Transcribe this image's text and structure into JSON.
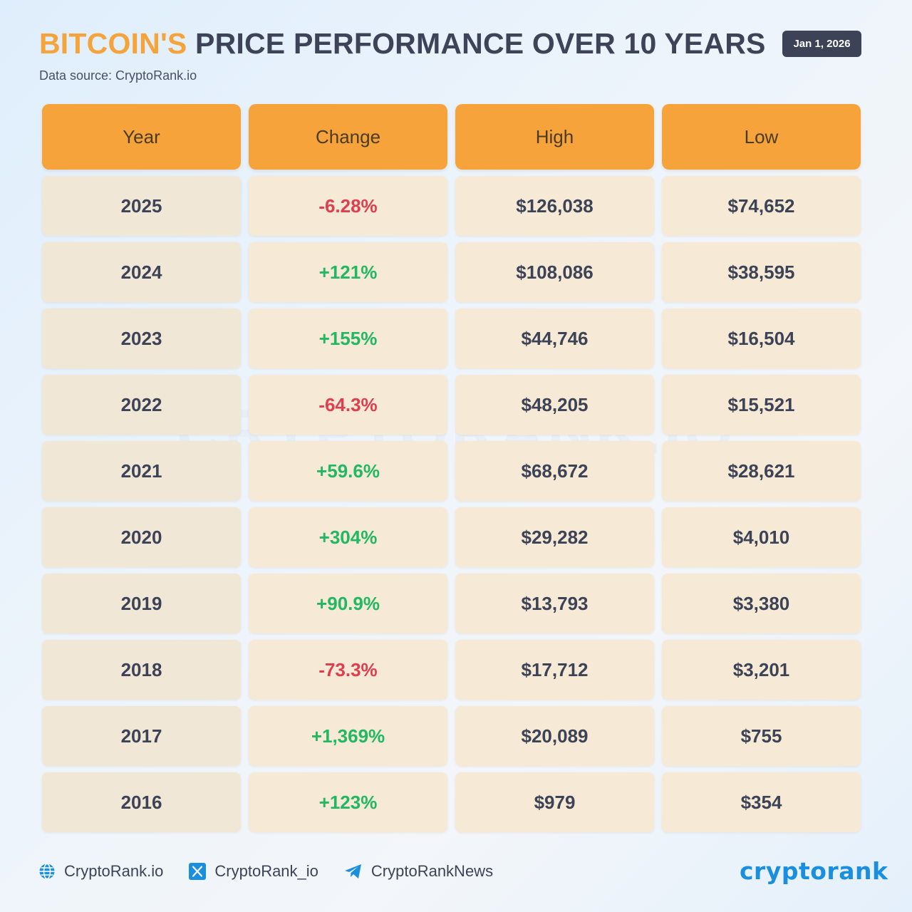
{
  "header": {
    "title_accent": "BITCOIN'S",
    "title_rest": "PRICE PERFORMANCE OVER 10 YEARS",
    "subtitle": "Data source: CryptoRank.io",
    "date": "Jan 1, 2026"
  },
  "watermark": "CRYPTORANK.IO",
  "table": {
    "columns": [
      "Year",
      "Change",
      "High",
      "Low"
    ],
    "rows": [
      {
        "year": "2025",
        "change": "-6.28%",
        "trend": "neg",
        "high": "$126,038",
        "low": "$74,652"
      },
      {
        "year": "2024",
        "change": "+121%",
        "trend": "pos",
        "high": "$108,086",
        "low": "$38,595"
      },
      {
        "year": "2023",
        "change": "+155%",
        "trend": "pos",
        "high": "$44,746",
        "low": "$16,504"
      },
      {
        "year": "2022",
        "change": "-64.3%",
        "trend": "neg",
        "high": "$48,205",
        "low": "$15,521"
      },
      {
        "year": "2021",
        "change": "+59.6%",
        "trend": "pos",
        "high": "$68,672",
        "low": "$28,621"
      },
      {
        "year": "2020",
        "change": "+304%",
        "trend": "pos",
        "high": "$29,282",
        "low": "$4,010"
      },
      {
        "year": "2019",
        "change": "+90.9%",
        "trend": "pos",
        "high": "$13,793",
        "low": "$3,380"
      },
      {
        "year": "2018",
        "change": "-73.3%",
        "trend": "neg",
        "high": "$17,712",
        "low": "$3,201"
      },
      {
        "year": "2017",
        "change": "+1,369%",
        "trend": "pos",
        "high": "$20,089",
        "low": "$755"
      },
      {
        "year": "2016",
        "change": "+123%",
        "trend": "pos",
        "high": "$979",
        "low": "$354"
      }
    ]
  },
  "footer": {
    "website": {
      "label": "CryptoRank.io",
      "icon": "globe-icon"
    },
    "x": {
      "label": "CryptoRank_io",
      "icon": "x-logo-icon"
    },
    "telegram": {
      "label": "CryptoRankNews",
      "icon": "telegram-icon"
    }
  },
  "brand": "cryptorank",
  "colors": {
    "accent": "#f5a33b",
    "header_cell": "#f6a33b",
    "cell": "#f6ead7",
    "positive": "#22b761",
    "negative": "#de3e4e",
    "text_dark": "#3d4356",
    "brand_blue": "#1a8fe0"
  }
}
